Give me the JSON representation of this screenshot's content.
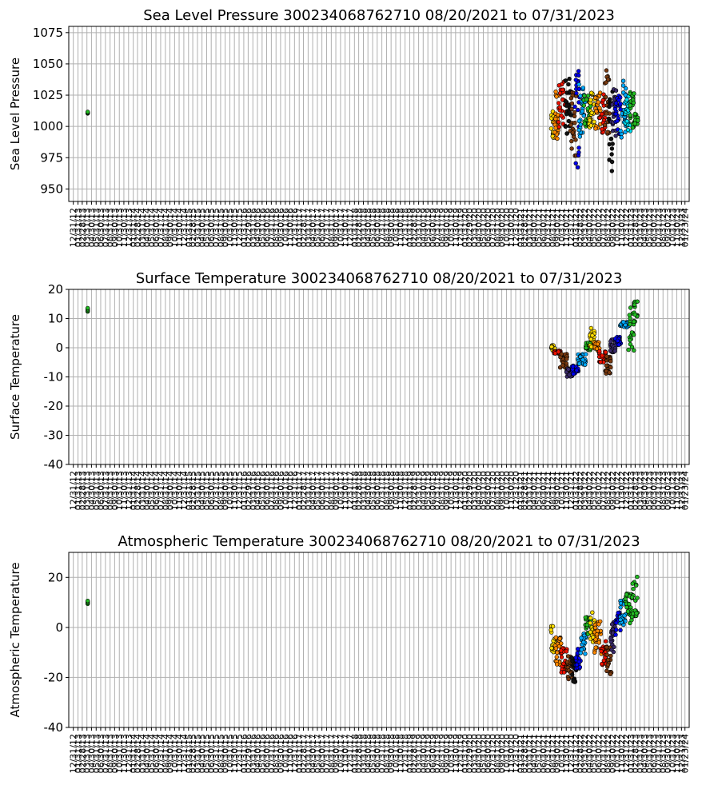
{
  "chart_data": [
    {
      "type": "scatter",
      "title": "Sea Level Pressure 300234068762710  08/20/2021 to 07/31/2023",
      "ylabel": "Sea Level Pressure",
      "ylim": [
        940,
        1080
      ],
      "yticks": [
        950,
        975,
        1000,
        1025,
        1050,
        1075
      ],
      "grid": true,
      "x_axis": "dates 12/31/2012 – 01/23/2024, monthly ticks",
      "isolated_points": [
        {
          "x": "2013-04-05",
          "y": 1011,
          "color": "#22bb22"
        }
      ],
      "segments": [
        {
          "x0": "2021-08-20",
          "x1": "2021-09-10",
          "ylow": 986,
          "yhigh": 1012,
          "color": "#ffdd00"
        },
        {
          "x0": "2021-09-05",
          "x1": "2021-10-15",
          "ylow": 990,
          "yhigh": 1030,
          "color": "#ff8800"
        },
        {
          "x0": "2021-10-10",
          "x1": "2021-11-25",
          "ylow": 988,
          "yhigh": 1036,
          "color": "#ee1100"
        },
        {
          "x0": "2021-11-20",
          "x1": "2022-01-05",
          "ylow": 994,
          "yhigh": 1042,
          "color": "#111111"
        },
        {
          "x0": "2021-12-25",
          "x1": "2022-02-05",
          "ylow": 975,
          "yhigh": 1028,
          "color": "#7a3a10"
        },
        {
          "x0": "2022-01-25",
          "x1": "2022-03-01",
          "ylow": 960,
          "yhigh": 1045,
          "color": "#0000ee"
        },
        {
          "x0": "2022-02-20",
          "x1": "2022-04-05",
          "ylow": 990,
          "yhigh": 1034,
          "color": "#00aaff"
        },
        {
          "x0": "2022-03-25",
          "x1": "2022-05-10",
          "ylow": 1000,
          "yhigh": 1025,
          "color": "#22bb22"
        },
        {
          "x0": "2022-05-01",
          "x1": "2022-06-10",
          "ylow": 998,
          "yhigh": 1028,
          "color": "#ffdd00"
        },
        {
          "x0": "2022-06-05",
          "x1": "2022-07-15",
          "ylow": 998,
          "yhigh": 1028,
          "color": "#ff8800"
        },
        {
          "x0": "2022-07-10",
          "x1": "2022-08-15",
          "ylow": 994,
          "yhigh": 1028,
          "color": "#ee1100"
        },
        {
          "x0": "2022-08-10",
          "x1": "2022-09-15",
          "ylow": 994,
          "yhigh": 1046,
          "color": "#7a3a10"
        },
        {
          "x0": "2022-09-05",
          "x1": "2022-10-05",
          "ylow": 963,
          "yhigh": 1028,
          "color": "#111111"
        },
        {
          "x0": "2022-09-25",
          "x1": "2022-10-25",
          "ylow": 992,
          "yhigh": 1030,
          "color": "#3a2a6a"
        },
        {
          "x0": "2022-10-15",
          "x1": "2022-11-25",
          "ylow": 992,
          "yhigh": 1026,
          "color": "#0000ee"
        },
        {
          "x0": "2022-11-20",
          "x1": "2022-12-31",
          "ylow": 990,
          "yhigh": 1038,
          "color": "#00aaff"
        },
        {
          "x0": "2022-12-25",
          "x1": "2023-01-31",
          "ylow": 996,
          "yhigh": 1026,
          "color": "#00ddee"
        },
        {
          "x0": "2023-01-25",
          "x1": "2023-03-01",
          "ylow": 998,
          "yhigh": 1030,
          "color": "#22bb22"
        },
        {
          "x0": "2023-02-25",
          "x1": "2023-03-20",
          "ylow": 1002,
          "yhigh": 1012,
          "color": "#22bb22"
        }
      ]
    },
    {
      "type": "scatter",
      "title": "Surface Temperature 300234068762710  08/20/2021 to 07/31/2023",
      "ylabel": "Surface Temperature",
      "ylim": [
        -40,
        20
      ],
      "yticks": [
        -40,
        -30,
        -20,
        -10,
        0,
        10,
        20
      ],
      "grid": true,
      "x_axis": "dates 12/31/2012 – 01/23/2024, monthly ticks",
      "isolated_points": [
        {
          "x": "2013-04-05",
          "y": 13,
          "color": "#22bb22"
        }
      ],
      "segments": [
        {
          "x0": "2021-08-20",
          "x1": "2021-09-15",
          "ylow": -1,
          "yhigh": 1,
          "color": "#ffdd00"
        },
        {
          "x0": "2021-09-10",
          "x1": "2021-10-25",
          "ylow": -2,
          "yhigh": -1,
          "color": "#ee1100"
        },
        {
          "x0": "2021-10-20",
          "x1": "2021-12-05",
          "ylow": -7,
          "yhigh": -2,
          "color": "#7a3a10"
        },
        {
          "x0": "2021-12-01",
          "x1": "2022-01-10",
          "ylow": -10,
          "yhigh": -7,
          "color": "#3a2a6a"
        },
        {
          "x0": "2022-01-05",
          "x1": "2022-02-20",
          "ylow": -9,
          "yhigh": -6,
          "color": "#0000ee"
        },
        {
          "x0": "2022-02-15",
          "x1": "2022-04-10",
          "ylow": -6,
          "yhigh": -2,
          "color": "#00aaff"
        },
        {
          "x0": "2022-04-05",
          "x1": "2022-05-10",
          "ylow": -1,
          "yhigh": 2,
          "color": "#22bb22"
        },
        {
          "x0": "2022-05-05",
          "x1": "2022-06-05",
          "ylow": 0,
          "yhigh": 7,
          "color": "#ffdd00"
        },
        {
          "x0": "2022-06-01",
          "x1": "2022-07-10",
          "ylow": -1,
          "yhigh": 2,
          "color": "#ff8800"
        },
        {
          "x0": "2022-07-05",
          "x1": "2022-08-20",
          "ylow": -5,
          "yhigh": -1,
          "color": "#ee1100"
        },
        {
          "x0": "2022-08-15",
          "x1": "2022-09-20",
          "ylow": -9,
          "yhigh": -3,
          "color": "#7a3a10"
        },
        {
          "x0": "2022-09-15",
          "x1": "2022-10-20",
          "ylow": -2,
          "yhigh": 3,
          "color": "#3a2a6a"
        },
        {
          "x0": "2022-10-15",
          "x1": "2022-11-25",
          "ylow": 1,
          "yhigh": 4,
          "color": "#0000ee"
        },
        {
          "x0": "2022-11-20",
          "x1": "2023-01-20",
          "ylow": 7,
          "yhigh": 9,
          "color": "#00aaff"
        },
        {
          "x0": "2023-01-15",
          "x1": "2023-02-20",
          "ylow": -1,
          "yhigh": 15,
          "color": "#22bb22"
        },
        {
          "x0": "2023-02-15",
          "x1": "2023-03-15",
          "ylow": 8,
          "yhigh": 17,
          "color": "#22bb22"
        }
      ]
    },
    {
      "type": "scatter",
      "title": "Atmospheric Temperature 300234068762710  08/20/2021 to 07/31/2023",
      "ylabel": "Atmospheric Temperature",
      "ylim": [
        -40,
        30
      ],
      "yticks": [
        -40,
        -20,
        0,
        20
      ],
      "grid": true,
      "x_axis": "dates 12/31/2012 – 01/23/2024, monthly ticks",
      "isolated_points": [
        {
          "x": "2013-04-05",
          "y": 10,
          "color": "#22bb22"
        }
      ],
      "segments": [
        {
          "x0": "2021-08-20",
          "x1": "2021-09-20",
          "ylow": -10,
          "yhigh": 2,
          "color": "#ffdd00"
        },
        {
          "x0": "2021-09-15",
          "x1": "2021-10-30",
          "ylow": -15,
          "yhigh": -4,
          "color": "#ff8800"
        },
        {
          "x0": "2021-10-25",
          "x1": "2021-12-05",
          "ylow": -18,
          "yhigh": -8,
          "color": "#ee1100"
        },
        {
          "x0": "2021-12-01",
          "x1": "2022-01-10",
          "ylow": -21,
          "yhigh": -11,
          "color": "#7a3a10"
        },
        {
          "x0": "2022-01-05",
          "x1": "2022-02-05",
          "ylow": -22,
          "yhigh": -12,
          "color": "#111111"
        },
        {
          "x0": "2022-02-01",
          "x1": "2022-03-10",
          "ylow": -18,
          "yhigh": -8,
          "color": "#0000ee"
        },
        {
          "x0": "2022-03-05",
          "x1": "2022-04-10",
          "ylow": -11,
          "yhigh": -2,
          "color": "#00aaff"
        },
        {
          "x0": "2022-04-05",
          "x1": "2022-05-10",
          "ylow": -3,
          "yhigh": 5,
          "color": "#22bb22"
        },
        {
          "x0": "2022-05-05",
          "x1": "2022-06-10",
          "ylow": -6,
          "yhigh": 6,
          "color": "#ffdd00"
        },
        {
          "x0": "2022-06-05",
          "x1": "2022-07-20",
          "ylow": -12,
          "yhigh": 3,
          "color": "#ff8800"
        },
        {
          "x0": "2022-07-15",
          "x1": "2022-08-25",
          "ylow": -16,
          "yhigh": -4,
          "color": "#ee1100"
        },
        {
          "x0": "2022-08-20",
          "x1": "2022-09-25",
          "ylow": -19,
          "yhigh": -6,
          "color": "#7a3a10"
        },
        {
          "x0": "2022-09-20",
          "x1": "2022-10-25",
          "ylow": -10,
          "yhigh": 2,
          "color": "#3a2a6a"
        },
        {
          "x0": "2022-10-20",
          "x1": "2022-11-25",
          "ylow": -3,
          "yhigh": 6,
          "color": "#0000ee"
        },
        {
          "x0": "2022-11-20",
          "x1": "2022-12-31",
          "ylow": 1,
          "yhigh": 11,
          "color": "#00aaff"
        },
        {
          "x0": "2022-12-25",
          "x1": "2023-02-10",
          "ylow": 1,
          "yhigh": 14,
          "color": "#22bb22"
        },
        {
          "x0": "2023-02-05",
          "x1": "2023-03-15",
          "ylow": 4,
          "yhigh": 21,
          "color": "#22bb22"
        }
      ]
    }
  ],
  "x_ticks": [
    "12/31/12",
    "01/31/13",
    "02/28/13",
    "03/31/13",
    "04/30/13",
    "05/31/13",
    "06/30/13",
    "07/31/13",
    "08/31/13",
    "09/30/13",
    "10/31/13",
    "11/30/13",
    "12/31/13",
    "01/31/14",
    "02/28/14",
    "03/31/14",
    "04/30/14",
    "05/31/14",
    "06/30/14",
    "07/31/14",
    "08/31/14",
    "09/30/14",
    "10/31/14",
    "11/30/14",
    "12/31/14",
    "01/31/15",
    "02/28/15",
    "03/31/15",
    "04/30/15",
    "05/31/15",
    "06/30/15",
    "07/31/15",
    "08/31/15",
    "09/30/15",
    "10/31/15",
    "11/30/15",
    "12/31/15",
    "01/31/16",
    "02/29/16",
    "03/31/16",
    "04/30/16",
    "05/31/16",
    "06/30/16",
    "07/31/16",
    "08/31/16",
    "09/30/16",
    "10/31/16",
    "11/30/16",
    "12/31/16",
    "01/31/17",
    "02/28/17",
    "03/31/17",
    "04/30/17",
    "05/31/17",
    "06/30/17",
    "07/31/17",
    "08/31/17",
    "09/30/17",
    "10/31/17",
    "11/30/17",
    "12/31/17",
    "01/31/18",
    "02/28/18",
    "03/31/18",
    "04/30/18",
    "05/31/18",
    "06/30/18",
    "07/31/18",
    "08/31/18",
    "09/30/18",
    "10/31/18",
    "11/30/18",
    "12/31/18",
    "01/31/19",
    "02/28/19",
    "03/31/19",
    "04/30/19",
    "05/31/19",
    "06/30/19",
    "07/31/19",
    "08/31/19",
    "09/30/19",
    "10/31/19",
    "11/30/19",
    "12/31/19",
    "01/31/20",
    "02/29/20",
    "03/31/20",
    "04/30/20",
    "05/31/20",
    "06/30/20",
    "07/31/20",
    "08/31/20",
    "09/30/20",
    "10/31/20",
    "11/30/20",
    "12/31/20",
    "01/31/21",
    "02/28/21",
    "03/31/21",
    "04/30/21",
    "05/31/21",
    "06/30/21",
    "07/31/21",
    "08/31/21",
    "09/30/21",
    "10/31/21",
    "11/30/21",
    "12/31/21",
    "01/31/22",
    "02/28/22",
    "03/31/22",
    "04/30/22",
    "05/31/22",
    "06/30/22",
    "07/31/22",
    "08/31/22",
    "09/30/22",
    "10/31/22",
    "11/30/22",
    "12/31/22",
    "01/31/23",
    "02/28/23",
    "03/31/23",
    "04/30/23",
    "05/31/23",
    "06/30/23",
    "07/31/23",
    "08/31/23",
    "09/30/23",
    "10/31/23",
    "11/30/23",
    "12/31/23",
    "01/23/24"
  ]
}
